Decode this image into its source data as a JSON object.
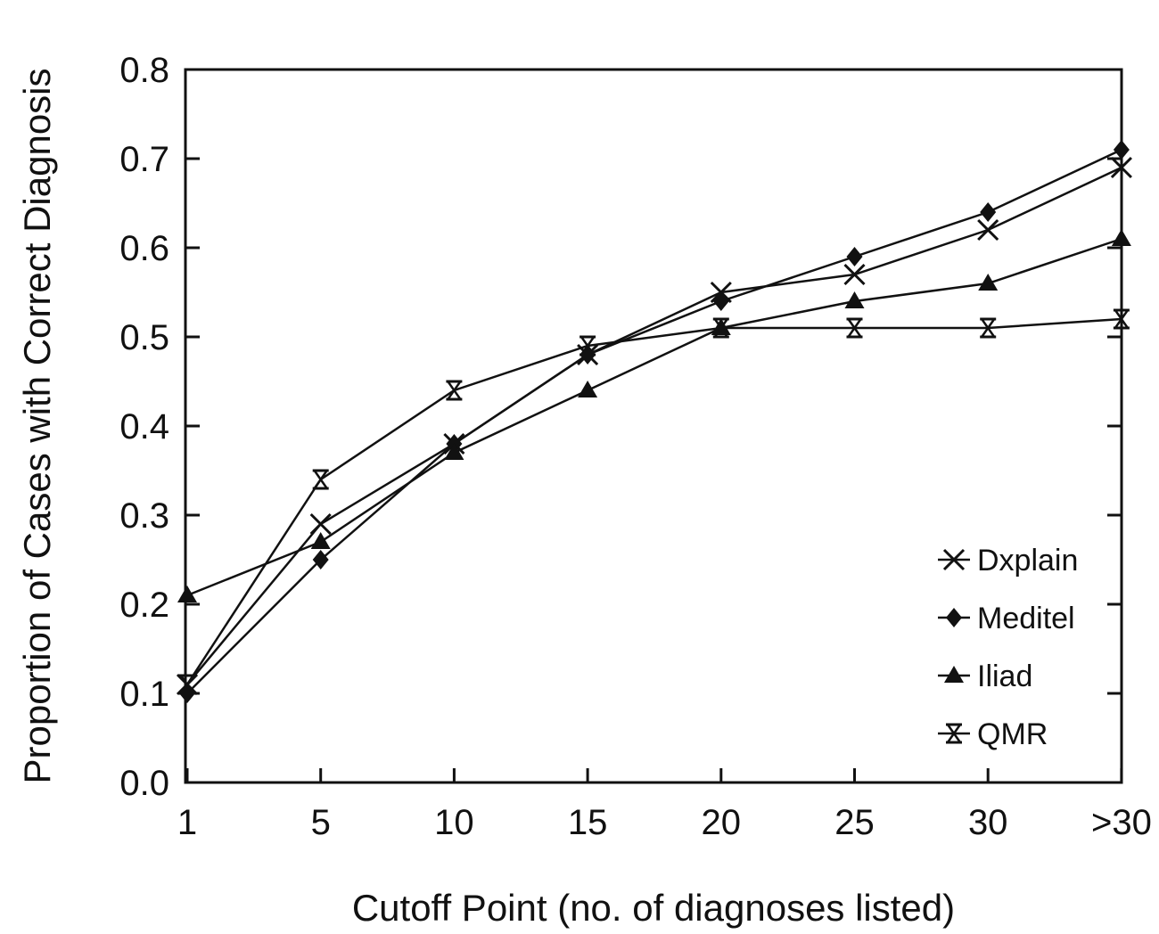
{
  "chart_data": {
    "type": "line",
    "categories": [
      "1",
      "5",
      "10",
      "15",
      "20",
      "25",
      "30",
      ">30"
    ],
    "xlabel": "Cutoff Point (no. of diagnoses listed)",
    "ylabel": "Proportion of Cases with Correct Diagnosis",
    "ylim": [
      0.0,
      0.8
    ],
    "yticks": [
      "0.0",
      "0.1",
      "0.2",
      "0.3",
      "0.4",
      "0.5",
      "0.6",
      "0.7",
      "0.8"
    ],
    "legend_position": "bottom-right",
    "grid": false,
    "series": [
      {
        "name": "Dxplain",
        "marker": "x",
        "values": [
          0.11,
          0.29,
          0.38,
          0.48,
          0.55,
          0.57,
          0.62,
          0.69
        ]
      },
      {
        "name": "Meditel",
        "marker": "diamond",
        "values": [
          0.1,
          0.25,
          0.38,
          0.48,
          0.54,
          0.59,
          0.64,
          0.71
        ]
      },
      {
        "name": "Iliad",
        "marker": "triangle",
        "values": [
          0.21,
          0.27,
          0.37,
          0.44,
          0.51,
          0.54,
          0.56,
          0.61
        ]
      },
      {
        "name": "QMR",
        "marker": "hourglass",
        "values": [
          0.11,
          0.34,
          0.44,
          0.49,
          0.51,
          0.51,
          0.51,
          0.52
        ]
      }
    ]
  }
}
